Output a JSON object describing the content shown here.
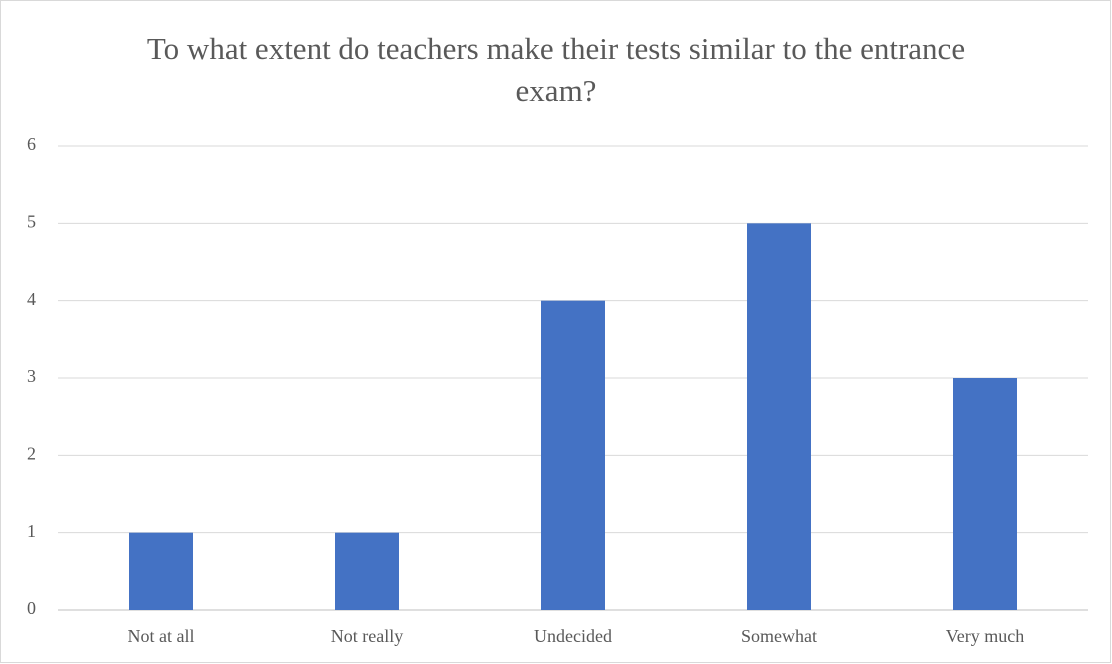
{
  "chart_data": {
    "type": "bar",
    "title": "To what extent do teachers make their tests similar to the entrance exam?",
    "categories": [
      "Not at all",
      "Not really",
      "Undecided",
      "Somewhat",
      "Very much"
    ],
    "values": [
      1,
      1,
      4,
      5,
      3
    ],
    "color": "#4472c4",
    "ylim": [
      0,
      6
    ],
    "yticks": [
      0,
      1,
      2,
      3,
      4,
      5,
      6
    ],
    "grid": true
  }
}
